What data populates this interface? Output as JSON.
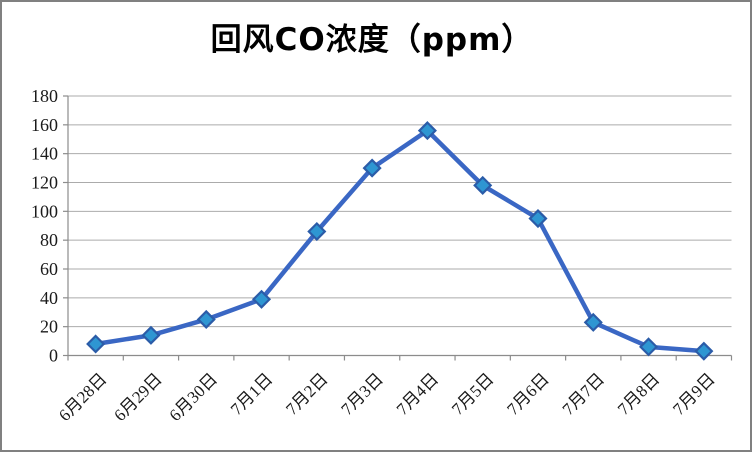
{
  "window": {
    "background_color": "#FFFFFF",
    "border_color": "#808080"
  },
  "chart_data": {
    "type": "line",
    "title": "回风CO浓度（ppm）",
    "categories": [
      "6月28日",
      "6月29日",
      "6月30日",
      "7月1日",
      "7月2日",
      "7月3日",
      "7月4日",
      "7月5日",
      "7月6日",
      "7月7日",
      "7月8日",
      "7月9日"
    ],
    "values": [
      8,
      14,
      25,
      39,
      86,
      130,
      156,
      118,
      95,
      23,
      6,
      3
    ],
    "xlabel": "",
    "ylabel": "",
    "ylim": [
      0,
      180
    ],
    "ytick_interval": 20,
    "yticks": [
      0,
      20,
      40,
      60,
      80,
      100,
      120,
      140,
      160,
      180
    ],
    "grid": true,
    "legend": "none",
    "marker": "diamond",
    "colors": {
      "line": "#3A67C4",
      "marker_fill": "#2E96D2",
      "marker_border": "#2B5CA8",
      "gridline": "#ABABAB",
      "axis": "#8C8C8C",
      "label_text": "#1A1A1A",
      "title_text": "#000000"
    }
  }
}
